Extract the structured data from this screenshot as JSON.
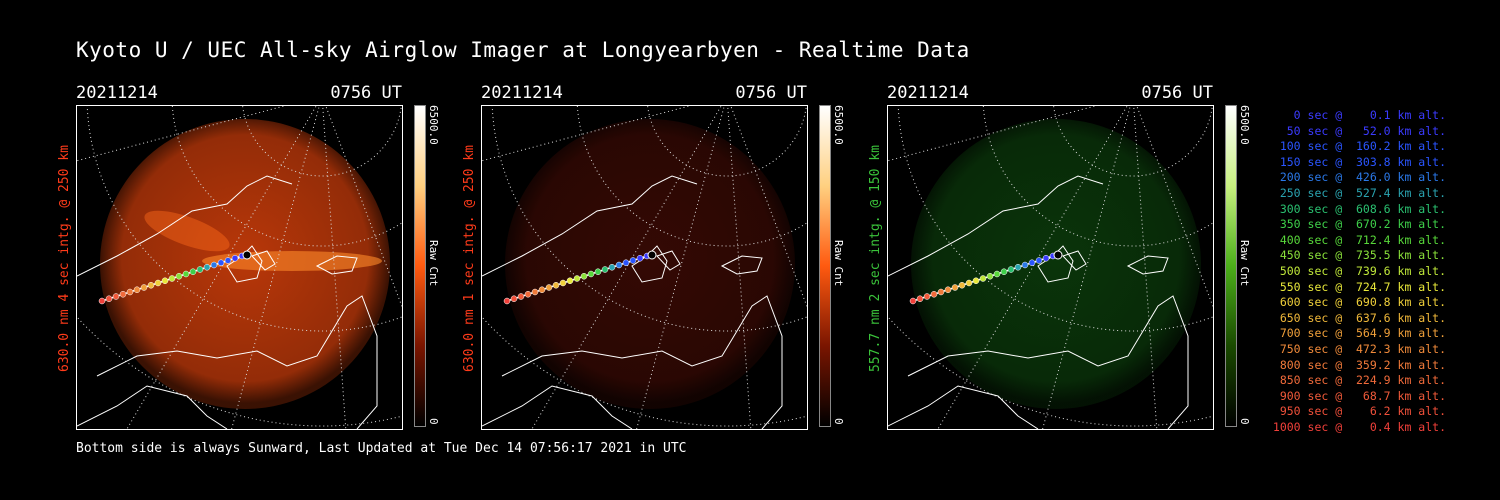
{
  "title": "Kyoto U / UEC All-sky Airglow Imager at Longyearbyen - Realtime Data",
  "footer": "Bottom side is always Sunward, Last Updated at Tue Dec 14 07:56:17 2021 in UTC",
  "panels": [
    {
      "date": "20211214",
      "time": "0756 UT",
      "ylabel": "630.0 nm 4 sec intg. @ 250 km",
      "label_color": "#ff3b1a",
      "cbar_max": "6500.0",
      "cbar_unit": "Raw Cnt",
      "cbar_min": "0",
      "glow": "#c23a0a",
      "glow_intensity": 0.95,
      "cbar_color": "#ff5a10",
      "icon": "red-airglow-image"
    },
    {
      "date": "20211214",
      "time": "0756 UT",
      "ylabel": "630.0 nm 1 sec intg. @ 250 km",
      "label_color": "#ff3b1a",
      "cbar_max": "6500.0",
      "cbar_unit": "Raw Cnt",
      "cbar_min": "0",
      "glow": "#3a0a04",
      "glow_intensity": 0.9,
      "cbar_color": "#ff5a10",
      "icon": "red-airglow-image"
    },
    {
      "date": "20211214",
      "time": "0756 UT",
      "ylabel": "557.7 nm 2 sec intg. @ 150 km",
      "label_color": "#3ac23a",
      "cbar_max": "6500.0",
      "cbar_unit": "Raw Cnt",
      "cbar_min": "0",
      "glow": "#0b3a0b",
      "glow_intensity": 0.9,
      "cbar_color": "#4caf1a",
      "icon": "green-airglow-image"
    }
  ],
  "legend": [
    {
      "text": "0 sec @    0.1 km alt.",
      "color": "#3b3bff"
    },
    {
      "text": "50 sec @   52.0 km alt.",
      "color": "#3b3bff"
    },
    {
      "text": "100 sec @  160.2 km alt.",
      "color": "#2a55ff"
    },
    {
      "text": "150 sec @  303.8 km alt.",
      "color": "#2a55ff"
    },
    {
      "text": "200 sec @  426.0 km alt.",
      "color": "#2a78e8"
    },
    {
      "text": "250 sec @  527.4 km alt.",
      "color": "#2aa3b0"
    },
    {
      "text": "300 sec @  608.6 km alt.",
      "color": "#2ac070"
    },
    {
      "text": "350 sec @  670.2 km alt.",
      "color": "#3ed04a"
    },
    {
      "text": "400 sec @  712.4 km alt.",
      "color": "#58d83a"
    },
    {
      "text": "450 sec @  735.5 km alt.",
      "color": "#8ae03a"
    },
    {
      "text": "500 sec @  739.6 km alt.",
      "color": "#c0e83a"
    },
    {
      "text": "550 sec @  724.7 km alt.",
      "color": "#e8e83a"
    },
    {
      "text": "600 sec @  690.8 km alt.",
      "color": "#f0d03a"
    },
    {
      "text": "650 sec @  637.6 km alt.",
      "color": "#f0b83a"
    },
    {
      "text": "700 sec @  564.9 km alt.",
      "color": "#f0a03a"
    },
    {
      "text": "750 sec @  472.3 km alt.",
      "color": "#f08a3a"
    },
    {
      "text": "800 sec @  359.2 km alt.",
      "color": "#f07a3a"
    },
    {
      "text": "850 sec @  224.9 km alt.",
      "color": "#f06a3a"
    },
    {
      "text": "900 sec @   68.7 km alt.",
      "color": "#f05a3a"
    },
    {
      "text": "950 sec @    6.2 km alt.",
      "color": "#f0503a"
    },
    {
      "text": "1000 sec @    0.4 km alt.",
      "color": "#f0403a"
    }
  ]
}
